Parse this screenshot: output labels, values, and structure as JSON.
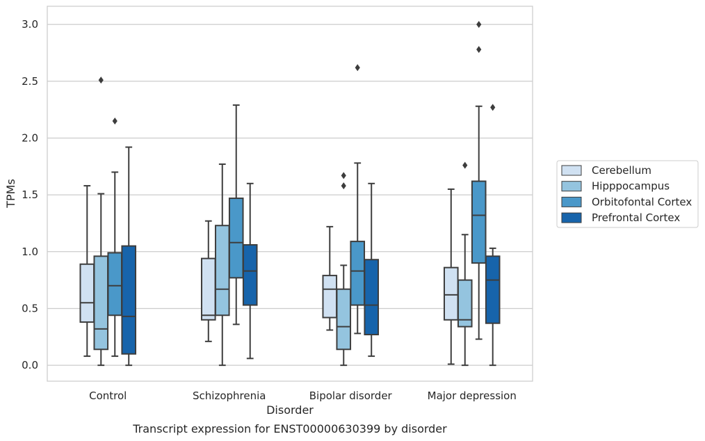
{
  "chart_data": {
    "type": "box",
    "caption": "Transcript expression for ENST00000630399 by disorder",
    "xlabel": "Disorder",
    "ylabel": "TPMs",
    "ylim": [
      -0.14,
      3.16
    ],
    "yticks": [
      0.0,
      0.5,
      1.0,
      1.5,
      2.0,
      2.5,
      3.0
    ],
    "ytick_labels": [
      "0.0",
      "0.5",
      "1.0",
      "1.5",
      "2.0",
      "2.5",
      "3.0"
    ],
    "grid": "horizontal",
    "legend_position": "right",
    "categories": [
      "Control",
      "Schizophrenia",
      "Bipolar disorder",
      "Major depression"
    ],
    "series": [
      {
        "name": "Cerebellum",
        "color": "#d0e1f2",
        "boxes": [
          {
            "whisker_low": 0.08,
            "q1": 0.38,
            "median": 0.55,
            "q3": 0.89,
            "whisker_high": 1.58,
            "outliers": []
          },
          {
            "whisker_low": 0.21,
            "q1": 0.4,
            "median": 0.44,
            "q3": 0.94,
            "whisker_high": 1.27,
            "outliers": []
          },
          {
            "whisker_low": 0.31,
            "q1": 0.42,
            "median": 0.67,
            "q3": 0.79,
            "whisker_high": 1.22,
            "outliers": []
          },
          {
            "whisker_low": 0.01,
            "q1": 0.4,
            "median": 0.62,
            "q3": 0.86,
            "whisker_high": 1.55,
            "outliers": []
          }
        ]
      },
      {
        "name": "Hipppocampus",
        "color": "#94c4df",
        "boxes": [
          {
            "whisker_low": 0.0,
            "q1": 0.14,
            "median": 0.32,
            "q3": 0.96,
            "whisker_high": 1.51,
            "outliers": [
              2.51
            ]
          },
          {
            "whisker_low": 0.0,
            "q1": 0.44,
            "median": 0.67,
            "q3": 1.23,
            "whisker_high": 1.77,
            "outliers": []
          },
          {
            "whisker_low": 0.0,
            "q1": 0.14,
            "median": 0.34,
            "q3": 0.67,
            "whisker_high": 0.88,
            "outliers": [
              1.58,
              1.67
            ]
          },
          {
            "whisker_low": 0.0,
            "q1": 0.34,
            "median": 0.4,
            "q3": 0.75,
            "whisker_high": 1.15,
            "outliers": [
              1.76
            ]
          }
        ]
      },
      {
        "name": "Orbitofontal Cortex",
        "color": "#4a98c9",
        "boxes": [
          {
            "whisker_low": 0.08,
            "q1": 0.44,
            "median": 0.7,
            "q3": 0.99,
            "whisker_high": 1.7,
            "outliers": [
              2.15
            ]
          },
          {
            "whisker_low": 0.36,
            "q1": 0.77,
            "median": 1.08,
            "q3": 1.47,
            "whisker_high": 2.29,
            "outliers": []
          },
          {
            "whisker_low": 0.28,
            "q1": 0.53,
            "median": 0.83,
            "q3": 1.09,
            "whisker_high": 1.78,
            "outliers": [
              2.62
            ]
          },
          {
            "whisker_low": 0.23,
            "q1": 0.9,
            "median": 1.32,
            "q3": 1.62,
            "whisker_high": 2.28,
            "outliers": [
              2.78,
              3.0
            ]
          }
        ]
      },
      {
        "name": "Prefrontal Cortex",
        "color": "#1764ab",
        "boxes": [
          {
            "whisker_low": 0.0,
            "q1": 0.1,
            "median": 0.43,
            "q3": 1.05,
            "whisker_high": 1.92,
            "outliers": []
          },
          {
            "whisker_low": 0.06,
            "q1": 0.53,
            "median": 0.83,
            "q3": 1.06,
            "whisker_high": 1.6,
            "outliers": []
          },
          {
            "whisker_low": 0.08,
            "q1": 0.27,
            "median": 0.53,
            "q3": 0.93,
            "whisker_high": 1.6,
            "outliers": []
          },
          {
            "whisker_low": 0.0,
            "q1": 0.37,
            "median": 0.75,
            "q3": 0.96,
            "whisker_high": 1.03,
            "outliers": [
              2.27
            ]
          }
        ]
      }
    ]
  }
}
